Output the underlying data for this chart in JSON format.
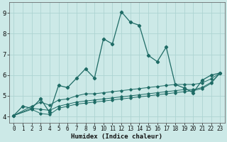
{
  "xlabel": "Humidex (Indice chaleur)",
  "ylabel": "",
  "xlim": [
    -0.5,
    23.5
  ],
  "ylim": [
    3.7,
    9.5
  ],
  "bg_color": "#cce9e7",
  "grid_color": "#add4d2",
  "line_color": "#1e6b65",
  "xticks": [
    0,
    1,
    2,
    3,
    4,
    5,
    6,
    7,
    8,
    9,
    10,
    11,
    12,
    13,
    14,
    15,
    16,
    17,
    18,
    19,
    20,
    21,
    22,
    23
  ],
  "yticks": [
    4,
    5,
    6,
    7,
    8,
    9
  ],
  "lines": [
    {
      "x": [
        0,
        1,
        2,
        3,
        4,
        5,
        6,
        7,
        8,
        9,
        10,
        11,
        12,
        13,
        14,
        15,
        16,
        17,
        18,
        19,
        20,
        21,
        22,
        23
      ],
      "y": [
        4.05,
        4.5,
        4.4,
        4.85,
        4.2,
        5.5,
        5.4,
        5.85,
        6.3,
        5.85,
        7.75,
        7.5,
        9.05,
        8.55,
        8.4,
        6.95,
        6.65,
        7.35,
        5.55,
        5.38,
        5.15,
        5.75,
        6.0,
        6.1
      ]
    },
    {
      "x": [
        0,
        2,
        3,
        4,
        5,
        6,
        7,
        8,
        9,
        10,
        11,
        12,
        13,
        14,
        15,
        16,
        17,
        18,
        19,
        20,
        21,
        22,
        23
      ],
      "y": [
        4.05,
        4.5,
        4.7,
        4.55,
        4.8,
        4.85,
        5.0,
        5.1,
        5.1,
        5.15,
        5.2,
        5.25,
        5.3,
        5.35,
        5.4,
        5.45,
        5.5,
        5.55,
        5.55,
        5.55,
        5.62,
        5.82,
        6.1
      ]
    },
    {
      "x": [
        0,
        2,
        3,
        4,
        5,
        6,
        7,
        8,
        9,
        10,
        11,
        12,
        13,
        14,
        15,
        16,
        17,
        18,
        19,
        20,
        21,
        22,
        23
      ],
      "y": [
        4.05,
        4.4,
        4.35,
        4.3,
        4.5,
        4.6,
        4.7,
        4.75,
        4.8,
        4.85,
        4.9,
        4.95,
        5.0,
        5.05,
        5.1,
        5.15,
        5.2,
        5.25,
        5.3,
        5.3,
        5.4,
        5.65,
        6.1
      ]
    },
    {
      "x": [
        0,
        2,
        3,
        4,
        5,
        6,
        7,
        8,
        9,
        10,
        11,
        12,
        13,
        14,
        15,
        16,
        17,
        18,
        19,
        20,
        21,
        22,
        23
      ],
      "y": [
        4.05,
        4.35,
        4.15,
        4.1,
        4.4,
        4.5,
        4.6,
        4.65,
        4.7,
        4.75,
        4.8,
        4.85,
        4.9,
        4.95,
        5.0,
        5.05,
        5.1,
        5.15,
        5.2,
        5.25,
        5.35,
        5.6,
        6.1
      ]
    }
  ]
}
